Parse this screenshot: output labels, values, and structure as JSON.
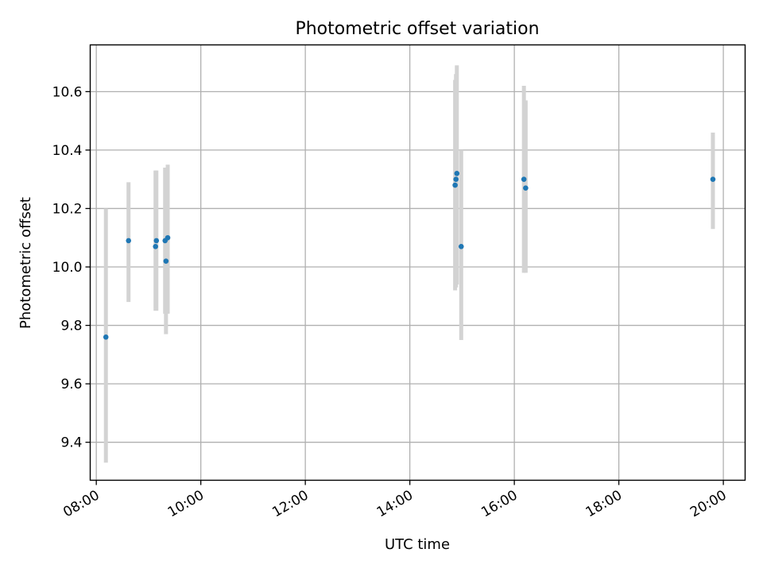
{
  "chart_data": {
    "type": "scatter",
    "title": "Photometric offset variation",
    "xlabel": "UTC time",
    "ylabel": "Photometric offset",
    "grid": true,
    "xlim": [
      "07:53",
      "20:25"
    ],
    "ylim": [
      9.27,
      10.76
    ],
    "x_ticks": [
      "08:00",
      "10:00",
      "12:00",
      "14:00",
      "16:00",
      "18:00",
      "20:00"
    ],
    "y_ticks": [
      9.4,
      9.6,
      9.8,
      10.0,
      10.2,
      10.4,
      10.6
    ],
    "y_tick_labels": [
      "9.4",
      "9.6",
      "9.8",
      "10.0",
      "10.2",
      "10.4",
      "10.6"
    ],
    "point_color": "#1f77b4",
    "errorbar_color": "#d3d3d3",
    "points": [
      {
        "x": "08:11",
        "y": 9.76,
        "ylo": 9.33,
        "yhi": 10.2
      },
      {
        "x": "08:37",
        "y": 10.09,
        "ylo": 9.88,
        "yhi": 10.29
      },
      {
        "x": "09:08",
        "y": 10.07,
        "ylo": 9.85,
        "yhi": 10.33
      },
      {
        "x": "09:09",
        "y": 10.09,
        "ylo": 9.85,
        "yhi": 10.33
      },
      {
        "x": "09:19",
        "y": 10.09,
        "ylo": 9.84,
        "yhi": 10.34
      },
      {
        "x": "09:20",
        "y": 10.02,
        "ylo": 9.77,
        "yhi": 10.27
      },
      {
        "x": "09:22",
        "y": 10.1,
        "ylo": 9.84,
        "yhi": 10.35
      },
      {
        "x": "14:52",
        "y": 10.28,
        "ylo": 9.92,
        "yhi": 10.64
      },
      {
        "x": "14:53",
        "y": 10.3,
        "ylo": 9.93,
        "yhi": 10.66
      },
      {
        "x": "14:54",
        "y": 10.32,
        "ylo": 9.94,
        "yhi": 10.69
      },
      {
        "x": "14:59",
        "y": 10.07,
        "ylo": 9.75,
        "yhi": 10.4
      },
      {
        "x": "16:11",
        "y": 10.3,
        "ylo": 9.98,
        "yhi": 10.62
      },
      {
        "x": "16:13",
        "y": 10.27,
        "ylo": 9.98,
        "yhi": 10.57
      },
      {
        "x": "19:48",
        "y": 10.3,
        "ylo": 10.13,
        "yhi": 10.46
      }
    ]
  }
}
